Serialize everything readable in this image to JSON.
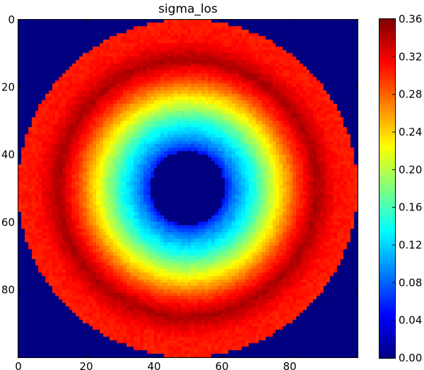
{
  "chart_data": {
    "type": "heatmap",
    "title": "sigma_los",
    "xlabel": "",
    "ylabel": "",
    "grid_shape": [
      100,
      100
    ],
    "xlim": [
      0,
      99
    ],
    "ylim": [
      99,
      0
    ],
    "x_ticks": [
      0,
      20,
      40,
      60,
      80
    ],
    "y_ticks": [
      0,
      20,
      40,
      60,
      80
    ],
    "colormap": "jet",
    "vmin": 0.0,
    "vmax": 0.36,
    "colorbar_ticks": [
      "0.00",
      "0.04",
      "0.08",
      "0.12",
      "0.16",
      "0.20",
      "0.24",
      "0.28",
      "0.32",
      "0.36"
    ],
    "description_of_field": {
      "center": [
        49.5,
        49.5
      ],
      "outside_radius_value": 0.0,
      "disk_outer_radius": 50,
      "inner_hole_radius": 11,
      "inner_hole_value": 0.0,
      "radial_profile": [
        {
          "r": 11,
          "value": 0.05
        },
        {
          "r": 14,
          "value": 0.09
        },
        {
          "r": 20,
          "value": 0.15
        },
        {
          "r": 26,
          "value": 0.22
        },
        {
          "r": 32,
          "value": 0.29
        },
        {
          "r": 38,
          "value": 0.345
        },
        {
          "r": 44,
          "value": 0.31
        },
        {
          "r": 50,
          "value": 0.305
        }
      ]
    }
  },
  "colors": {
    "background": "#ffffff",
    "axis": "#000000"
  }
}
